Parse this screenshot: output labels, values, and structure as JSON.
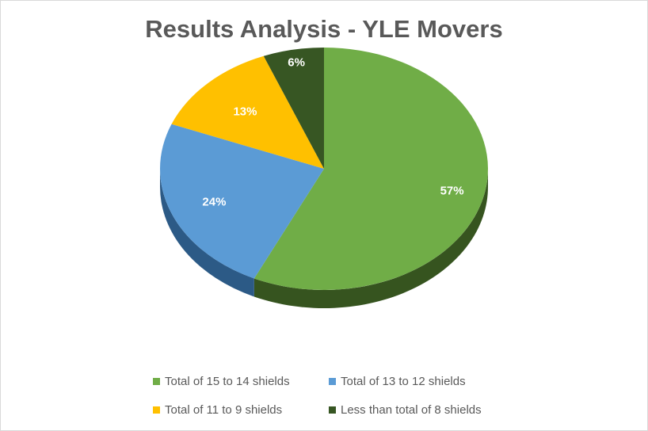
{
  "chart_data": {
    "type": "pie",
    "title": "Results Analysis - YLE Movers",
    "categories": [
      "Total of 15 to 14 shields",
      "Total of 13 to 12 shields",
      "Total of 11 to 9 shields",
      "Less than total of 8 shields"
    ],
    "values": [
      57,
      24,
      13,
      6
    ],
    "data_labels": [
      "57%",
      "24%",
      "13%",
      "6%"
    ],
    "colors": [
      "#70ad47",
      "#5b9bd5",
      "#ffc000",
      "#375623"
    ],
    "side_colors": [
      "#36541f",
      "#2c5a86",
      "#a07a00",
      "#1f3314"
    ],
    "legend_position": "bottom",
    "style": "3d-pie"
  }
}
